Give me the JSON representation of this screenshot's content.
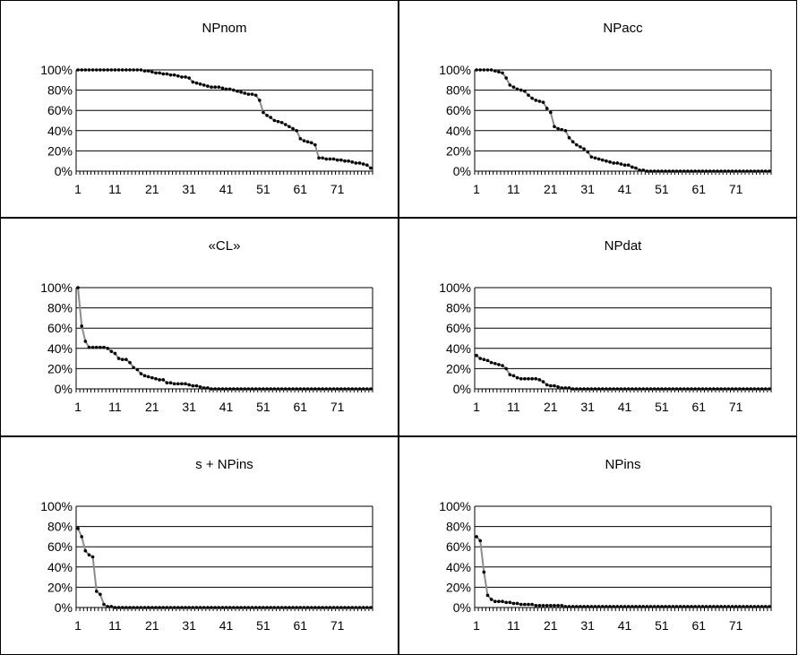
{
  "chart_data": [
    {
      "type": "line",
      "title": "NPnom",
      "y_ticks": [
        "0%",
        "20%",
        "40%",
        "60%",
        "80%",
        "100%"
      ],
      "x_ticks": [
        "1",
        "11",
        "21",
        "31",
        "41",
        "51",
        "61",
        "71"
      ],
      "ylim": [
        0,
        100
      ],
      "x": [
        1,
        2,
        3,
        4,
        5,
        6,
        7,
        8,
        9,
        10,
        11,
        12,
        13,
        14,
        15,
        16,
        17,
        18,
        19,
        20,
        21,
        22,
        23,
        24,
        25,
        26,
        27,
        28,
        29,
        30,
        31,
        32,
        33,
        34,
        35,
        36,
        37,
        38,
        39,
        40,
        41,
        42,
        43,
        44,
        45,
        46,
        47,
        48,
        49,
        50,
        51,
        52,
        53,
        54,
        55,
        56,
        57,
        58,
        59,
        60,
        61,
        62,
        63,
        64,
        65,
        66,
        67,
        68,
        69,
        70,
        71,
        72,
        73,
        74,
        75,
        76,
        77,
        78,
        79,
        80
      ],
      "values": [
        100,
        100,
        100,
        100,
        100,
        100,
        100,
        100,
        100,
        100,
        100,
        100,
        100,
        100,
        100,
        100,
        100,
        100,
        99,
        99,
        98,
        97,
        97,
        96,
        96,
        95,
        95,
        94,
        93,
        93,
        92,
        88,
        87,
        86,
        85,
        84,
        83,
        83,
        83,
        82,
        81,
        81,
        80,
        79,
        78,
        77,
        76,
        76,
        75,
        70,
        58,
        55,
        53,
        50,
        49,
        48,
        46,
        44,
        42,
        40,
        32,
        30,
        29,
        28,
        26,
        13,
        13,
        12,
        12,
        12,
        11,
        11,
        10,
        10,
        9,
        8,
        8,
        7,
        6,
        3
      ],
      "grid": true,
      "legend": "none"
    },
    {
      "type": "line",
      "title": "NPacc",
      "y_ticks": [
        "0%",
        "20%",
        "40%",
        "60%",
        "80%",
        "100%"
      ],
      "x_ticks": [
        "1",
        "11",
        "21",
        "31",
        "41",
        "51",
        "61",
        "71"
      ],
      "ylim": [
        0,
        100
      ],
      "x": [
        1,
        2,
        3,
        4,
        5,
        6,
        7,
        8,
        9,
        10,
        11,
        12,
        13,
        14,
        15,
        16,
        17,
        18,
        19,
        20,
        21,
        22,
        23,
        24,
        25,
        26,
        27,
        28,
        29,
        30,
        31,
        32,
        33,
        34,
        35,
        36,
        37,
        38,
        39,
        40,
        41,
        42,
        43,
        44,
        45,
        46,
        47,
        48,
        49,
        50,
        51,
        52,
        53,
        54,
        55,
        56,
        57,
        58,
        59,
        60,
        61,
        62,
        63,
        64,
        65,
        66,
        67,
        68,
        69,
        70,
        71,
        72,
        73,
        74,
        75,
        76,
        77,
        78,
        79,
        80
      ],
      "values": [
        100,
        100,
        100,
        100,
        100,
        99,
        98,
        97,
        92,
        85,
        83,
        81,
        80,
        79,
        75,
        72,
        70,
        69,
        68,
        62,
        58,
        44,
        42,
        41,
        40,
        33,
        29,
        26,
        24,
        22,
        19,
        14,
        13,
        12,
        11,
        10,
        9,
        8,
        8,
        7,
        6,
        6,
        4,
        3,
        1,
        1,
        0,
        0,
        0,
        0,
        0,
        0,
        0,
        0,
        0,
        0,
        0,
        0,
        0,
        0,
        0,
        0,
        0,
        0,
        0,
        0,
        0,
        0,
        0,
        0,
        0,
        0,
        0,
        0,
        0,
        0,
        0,
        0,
        0,
        0
      ],
      "grid": true,
      "legend": "none"
    },
    {
      "type": "line",
      "title": "«CL»",
      "y_ticks": [
        "0%",
        "20%",
        "40%",
        "60%",
        "80%",
        "100%"
      ],
      "x_ticks": [
        "1",
        "11",
        "21",
        "31",
        "41",
        "51",
        "61",
        "71"
      ],
      "ylim": [
        0,
        100
      ],
      "x": [
        1,
        2,
        3,
        4,
        5,
        6,
        7,
        8,
        9,
        10,
        11,
        12,
        13,
        14,
        15,
        16,
        17,
        18,
        19,
        20,
        21,
        22,
        23,
        24,
        25,
        26,
        27,
        28,
        29,
        30,
        31,
        32,
        33,
        34,
        35,
        36,
        37,
        38,
        39,
        40,
        41,
        42,
        43,
        44,
        45,
        46,
        47,
        48,
        49,
        50,
        51,
        52,
        53,
        54,
        55,
        56,
        57,
        58,
        59,
        60,
        61,
        62,
        63,
        64,
        65,
        66,
        67,
        68,
        69,
        70,
        71,
        72,
        73,
        74,
        75,
        76,
        77,
        78,
        79,
        80
      ],
      "values": [
        100,
        62,
        47,
        41,
        41,
        41,
        41,
        41,
        40,
        37,
        35,
        30,
        29,
        29,
        26,
        21,
        19,
        15,
        13,
        12,
        11,
        10,
        9,
        9,
        6,
        6,
        5,
        5,
        5,
        5,
        4,
        3,
        3,
        2,
        1,
        1,
        0,
        0,
        0,
        0,
        0,
        0,
        0,
        0,
        0,
        0,
        0,
        0,
        0,
        0,
        0,
        0,
        0,
        0,
        0,
        0,
        0,
        0,
        0,
        0,
        0,
        0,
        0,
        0,
        0,
        0,
        0,
        0,
        0,
        0,
        0,
        0,
        0,
        0,
        0,
        0,
        0,
        0,
        0,
        0
      ],
      "grid": true,
      "legend": "none"
    },
    {
      "type": "line",
      "title": "NPdat",
      "y_ticks": [
        "0%",
        "20%",
        "40%",
        "60%",
        "80%",
        "100%"
      ],
      "x_ticks": [
        "1",
        "11",
        "21",
        "31",
        "41",
        "51",
        "61",
        "71"
      ],
      "ylim": [
        0,
        100
      ],
      "x": [
        1,
        2,
        3,
        4,
        5,
        6,
        7,
        8,
        9,
        10,
        11,
        12,
        13,
        14,
        15,
        16,
        17,
        18,
        19,
        20,
        21,
        22,
        23,
        24,
        25,
        26,
        27,
        28,
        29,
        30,
        31,
        32,
        33,
        34,
        35,
        36,
        37,
        38,
        39,
        40,
        41,
        42,
        43,
        44,
        45,
        46,
        47,
        48,
        49,
        50,
        51,
        52,
        53,
        54,
        55,
        56,
        57,
        58,
        59,
        60,
        61,
        62,
        63,
        64,
        65,
        66,
        67,
        68,
        69,
        70,
        71,
        72,
        73,
        74,
        75,
        76,
        77,
        78,
        79,
        80
      ],
      "values": [
        33,
        30,
        29,
        28,
        26,
        25,
        24,
        23,
        20,
        14,
        13,
        11,
        10,
        10,
        10,
        10,
        10,
        9,
        7,
        4,
        3,
        3,
        2,
        1,
        1,
        1,
        0,
        0,
        0,
        0,
        0,
        0,
        0,
        0,
        0,
        0,
        0,
        0,
        0,
        0,
        0,
        0,
        0,
        0,
        0,
        0,
        0,
        0,
        0,
        0,
        0,
        0,
        0,
        0,
        0,
        0,
        0,
        0,
        0,
        0,
        0,
        0,
        0,
        0,
        0,
        0,
        0,
        0,
        0,
        0,
        0,
        0,
        0,
        0,
        0,
        0,
        0,
        0,
        0,
        0
      ],
      "grid": true,
      "legend": "none"
    },
    {
      "type": "line",
      "title": "s + NPins",
      "y_ticks": [
        "0%",
        "20%",
        "40%",
        "60%",
        "80%",
        "100%"
      ],
      "x_ticks": [
        "1",
        "11",
        "21",
        "31",
        "41",
        "51",
        "61",
        "71"
      ],
      "ylim": [
        0,
        100
      ],
      "x": [
        1,
        2,
        3,
        4,
        5,
        6,
        7,
        8,
        9,
        10,
        11,
        12,
        13,
        14,
        15,
        16,
        17,
        18,
        19,
        20,
        21,
        22,
        23,
        24,
        25,
        26,
        27,
        28,
        29,
        30,
        31,
        32,
        33,
        34,
        35,
        36,
        37,
        38,
        39,
        40,
        41,
        42,
        43,
        44,
        45,
        46,
        47,
        48,
        49,
        50,
        51,
        52,
        53,
        54,
        55,
        56,
        57,
        58,
        59,
        60,
        61,
        62,
        63,
        64,
        65,
        66,
        67,
        68,
        69,
        70,
        71,
        72,
        73,
        74,
        75,
        76,
        77,
        78,
        79,
        80
      ],
      "values": [
        78,
        70,
        56,
        52,
        50,
        16,
        13,
        3,
        1,
        1,
        0,
        0,
        0,
        0,
        0,
        0,
        0,
        0,
        0,
        0,
        0,
        0,
        0,
        0,
        0,
        0,
        0,
        0,
        0,
        0,
        0,
        0,
        0,
        0,
        0,
        0,
        0,
        0,
        0,
        0,
        0,
        0,
        0,
        0,
        0,
        0,
        0,
        0,
        0,
        0,
        0,
        0,
        0,
        0,
        0,
        0,
        0,
        0,
        0,
        0,
        0,
        0,
        0,
        0,
        0,
        0,
        0,
        0,
        0,
        0,
        0,
        0,
        0,
        0,
        0,
        0,
        0,
        0,
        0,
        0
      ],
      "grid": true,
      "legend": "none"
    },
    {
      "type": "line",
      "title": "NPins",
      "y_ticks": [
        "0%",
        "20%",
        "40%",
        "60%",
        "80%",
        "100%"
      ],
      "x_ticks": [
        "1",
        "11",
        "21",
        "31",
        "41",
        "51",
        "61",
        "71"
      ],
      "ylim": [
        0,
        100
      ],
      "x": [
        1,
        2,
        3,
        4,
        5,
        6,
        7,
        8,
        9,
        10,
        11,
        12,
        13,
        14,
        15,
        16,
        17,
        18,
        19,
        20,
        21,
        22,
        23,
        24,
        25,
        26,
        27,
        28,
        29,
        30,
        31,
        32,
        33,
        34,
        35,
        36,
        37,
        38,
        39,
        40,
        41,
        42,
        43,
        44,
        45,
        46,
        47,
        48,
        49,
        50,
        51,
        52,
        53,
        54,
        55,
        56,
        57,
        58,
        59,
        60,
        61,
        62,
        63,
        64,
        65,
        66,
        67,
        68,
        69,
        70,
        71,
        72,
        73,
        74,
        75,
        76,
        77,
        78,
        79,
        80
      ],
      "values": [
        70,
        66,
        35,
        12,
        8,
        6,
        6,
        6,
        5,
        5,
        4,
        4,
        3,
        3,
        3,
        3,
        2,
        2,
        2,
        2,
        2,
        2,
        2,
        2,
        1,
        1,
        1,
        1,
        1,
        1,
        1,
        1,
        1,
        1,
        1,
        1,
        1,
        1,
        1,
        1,
        1,
        1,
        1,
        1,
        1,
        1,
        1,
        1,
        1,
        1,
        1,
        1,
        1,
        1,
        1,
        1,
        1,
        1,
        1,
        1,
        1,
        1,
        1,
        1,
        1,
        1,
        1,
        1,
        1,
        1,
        1,
        1,
        1,
        1,
        1,
        1,
        1,
        1,
        1,
        1
      ],
      "grid": true,
      "legend": "none"
    }
  ]
}
